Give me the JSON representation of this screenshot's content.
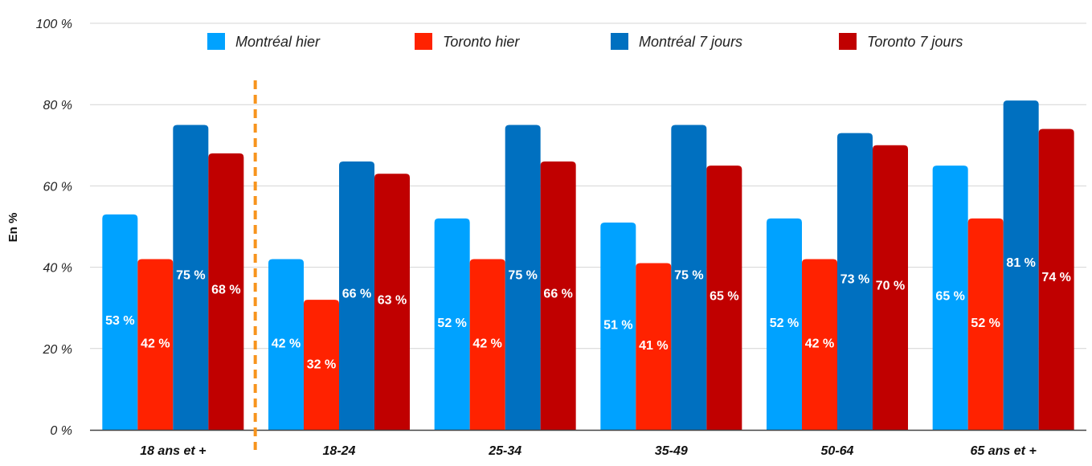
{
  "chart_data": {
    "type": "bar",
    "categories": [
      "18 ans et +",
      "18-24",
      "25-34",
      "35-49",
      "50-64",
      "65 ans et +"
    ],
    "series": [
      {
        "name": "Montréal hier",
        "color": "#00A2FF",
        "values": [
          53,
          42,
          52,
          51,
          52,
          65
        ],
        "labels": [
          "53 %",
          "42 %",
          "52 %",
          "51 %",
          "52 %",
          "65 %"
        ]
      },
      {
        "name": "Toronto hier",
        "color": "#FF2200",
        "values": [
          42,
          32,
          42,
          41,
          42,
          52
        ],
        "labels": [
          "42 %",
          "32 %",
          "42 %",
          "41 %",
          "42 %",
          "52 %"
        ]
      },
      {
        "name": "Montréal 7 jours",
        "color": "#0070C0",
        "values": [
          75,
          66,
          75,
          75,
          73,
          81
        ],
        "labels": [
          "75 %",
          "66 %",
          "75 %",
          "75 %",
          "73 %",
          "81 %"
        ]
      },
      {
        "name": "Toronto 7 jours",
        "color": "#C00000",
        "values": [
          68,
          63,
          66,
          65,
          70,
          74
        ],
        "labels": [
          "68 %",
          "63 %",
          "66 %",
          "65 %",
          "70 %",
          "74 %"
        ]
      }
    ],
    "ylabel": "En %",
    "ylim": [
      0,
      100
    ],
    "yticks": [
      0,
      20,
      40,
      60,
      80,
      100
    ],
    "ytick_labels": [
      "0 %",
      "20 %",
      "40 %",
      "60 %",
      "80 %",
      "100 %"
    ],
    "grid": true,
    "legend_position": "top",
    "separator_after_category": "18 ans et +",
    "separator_color": "#F7941D"
  }
}
